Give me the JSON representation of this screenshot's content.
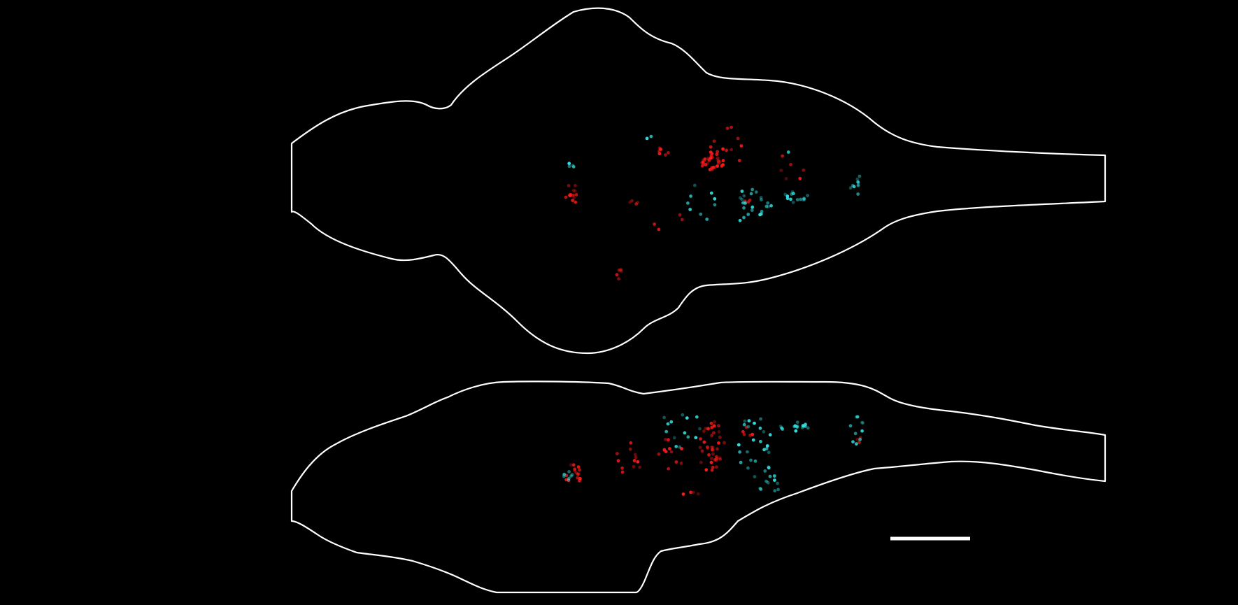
{
  "image": {
    "background": "#000000",
    "outline_color": "#ffffff",
    "scale_bar_color": "#ffffff"
  },
  "palette": {
    "red": "#ff1a1a",
    "cyan": "#33e0e0"
  },
  "views": [
    {
      "name": "dorsal-view"
    },
    {
      "name": "lateral-view"
    }
  ]
}
